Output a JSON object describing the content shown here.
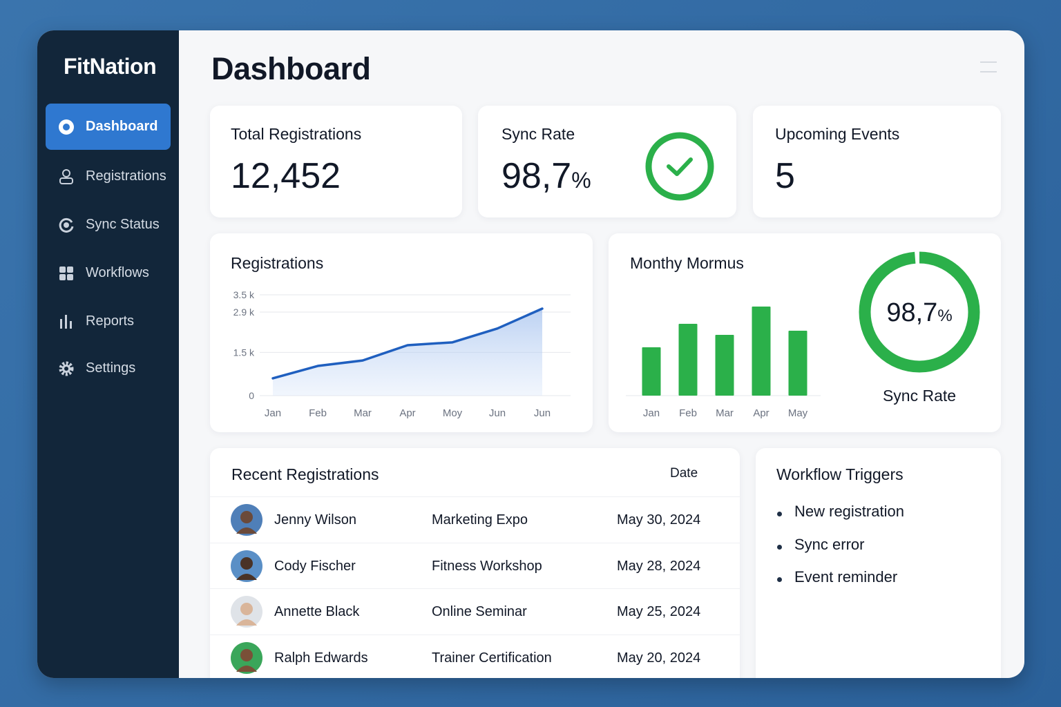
{
  "sidebar": {
    "brand": "FitNation",
    "nav": [
      "Dashboard",
      "Registrations",
      "Sync Status",
      "Workflows",
      "Reports",
      "Settings"
    ]
  },
  "header": {
    "title": "Dashboard"
  },
  "stats": [
    {
      "label": "Total Registrations",
      "value": "12,452"
    },
    {
      "label": "Sync Rate",
      "value": "98,7",
      "unit": "%"
    },
    {
      "label": "Upcoming Events",
      "value": "5"
    }
  ],
  "chart_data": [
    {
      "type": "line",
      "title": "Registrations",
      "categories": [
        "Jan",
        "Feb",
        "Mar",
        "Apr",
        "Moy",
        "Jun",
        "Jun"
      ],
      "values": [
        600,
        1030,
        1220,
        1750,
        1850,
        2330,
        3020
      ],
      "color": "#1f5fbf",
      "ylim": [
        0,
        3500
      ],
      "yticks": [
        {
          "value": 3500,
          "label": "3.5 k"
        },
        {
          "value": 2900,
          "label": "2.9 k"
        },
        {
          "value": 1500,
          "label": "1.5 k"
        },
        0
      ],
      "grid": true
    },
    {
      "type": "bar",
      "title": "Monthy Mormus",
      "categories": [
        "Jan",
        "Feb",
        "Mar",
        "Apr",
        "May"
      ],
      "values": [
        70,
        104,
        88,
        129,
        94
      ],
      "color": "#2bb04a",
      "ylim": [
        0,
        140
      ]
    },
    {
      "type": "donut",
      "value": 98.7,
      "value_label": "98,7",
      "unit": "%",
      "label": "Sync Rate",
      "color": "#2bb04a"
    }
  ],
  "recent_registrations": {
    "title": "Recent Registrations",
    "date_header": "Date",
    "rows": [
      [
        "Jenny Wilson",
        "Marketing Expo",
        "May 30, 2024"
      ],
      [
        "Cody Fischer",
        "Fitness Workshop",
        "May 28, 2024"
      ],
      [
        "Annette Black",
        "Online Seminar",
        "May 25, 2024"
      ],
      [
        "Ralph Edwards",
        "Trainer Certification",
        "May 20, 2024"
      ]
    ]
  },
  "workflow_triggers": {
    "title": "Workflow Triggers",
    "items": [
      "New registration",
      "Sync error",
      "Event reminder"
    ]
  }
}
